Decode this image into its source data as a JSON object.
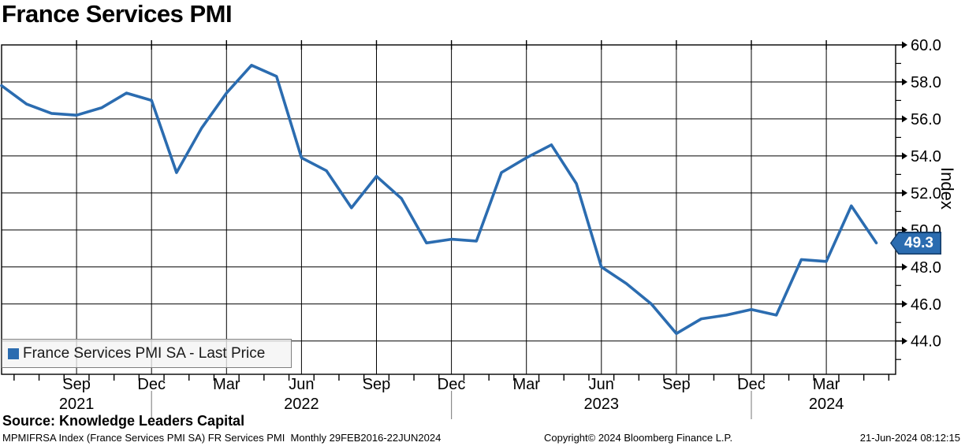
{
  "title": "France Services PMI",
  "legend": {
    "label": "France Services PMI SA - Last Price"
  },
  "badge": {
    "value": "49.3"
  },
  "source": "Source: Knowledge Leaders Capital",
  "footer": {
    "left": "MPMIFRSA Index (France Services PMI SA) FR Services PMI  Monthly 29FEB2016-22JUN2024",
    "center": "Copyright© 2024 Bloomberg Finance L.P.",
    "right": "21-Jun-2024 08:12:15"
  },
  "colors": {
    "accent": "#2b6cb0",
    "badge_fill": "#2b6cb0",
    "badge_border": "#123a66",
    "grid": "#000000",
    "year_separator": "#8c8c8c",
    "legend_bg": "#f3f3f3"
  },
  "chart_data": {
    "type": "line",
    "title": "France Services PMI",
    "ylabel": "Index",
    "xlabel": "",
    "grid": true,
    "legend_position": "bottom-left",
    "ylim": [
      42.2,
      60.0
    ],
    "x": [
      "2021-06",
      "2021-07",
      "2021-08",
      "2021-09",
      "2021-10",
      "2021-11",
      "2021-12",
      "2022-01",
      "2022-02",
      "2022-03",
      "2022-04",
      "2022-05",
      "2022-06",
      "2022-07",
      "2022-08",
      "2022-09",
      "2022-10",
      "2022-11",
      "2022-12",
      "2023-01",
      "2023-02",
      "2023-03",
      "2023-04",
      "2023-05",
      "2023-06",
      "2023-07",
      "2023-08",
      "2023-09",
      "2023-10",
      "2023-11",
      "2023-12",
      "2024-01",
      "2024-02",
      "2024-03",
      "2024-04",
      "2024-05"
    ],
    "series": [
      {
        "name": "France Services PMI SA - Last Price",
        "color": "#2b6cb0",
        "values": [
          57.8,
          56.8,
          56.3,
          56.2,
          56.6,
          57.4,
          57.0,
          53.1,
          55.5,
          57.4,
          58.9,
          58.3,
          53.9,
          53.2,
          51.2,
          52.9,
          51.7,
          49.3,
          49.5,
          49.4,
          53.1,
          53.9,
          54.6,
          52.5,
          48.0,
          47.1,
          46.0,
          44.4,
          45.2,
          45.4,
          45.7,
          45.4,
          48.4,
          48.3,
          51.3,
          49.3
        ]
      }
    ],
    "last_price": 49.3,
    "y_major_ticks": [
      {
        "value": 44,
        "label": "44.0"
      },
      {
        "value": 46,
        "label": "46.0"
      },
      {
        "value": 48,
        "label": "48.0"
      },
      {
        "value": 50,
        "label": "50.0"
      },
      {
        "value": 52,
        "label": "52.0"
      },
      {
        "value": 54,
        "label": "54.0"
      },
      {
        "value": 56,
        "label": "56.0"
      },
      {
        "value": 58,
        "label": "58.0"
      },
      {
        "value": 60,
        "label": "60.0"
      }
    ],
    "y_minor_tick_values": [
      43,
      45,
      47,
      49,
      51,
      53,
      55,
      57,
      59
    ],
    "x_quarter_ticks": [
      {
        "pos": 3,
        "label": "Sep",
        "year": "2021"
      },
      {
        "pos": 6,
        "label": "Dec"
      },
      {
        "pos": 9,
        "label": "Mar"
      },
      {
        "pos": 12,
        "label": "Jun",
        "year": "2022"
      },
      {
        "pos": 15,
        "label": "Sep"
      },
      {
        "pos": 18,
        "label": "Dec"
      },
      {
        "pos": 21,
        "label": "Mar"
      },
      {
        "pos": 24,
        "label": "Jun",
        "year": "2023"
      },
      {
        "pos": 27,
        "label": "Sep"
      },
      {
        "pos": 30,
        "label": "Dec"
      },
      {
        "pos": 33,
        "label": "Mar",
        "year": "2024"
      }
    ],
    "year_separator_positions": [
      6,
      18,
      30
    ]
  }
}
